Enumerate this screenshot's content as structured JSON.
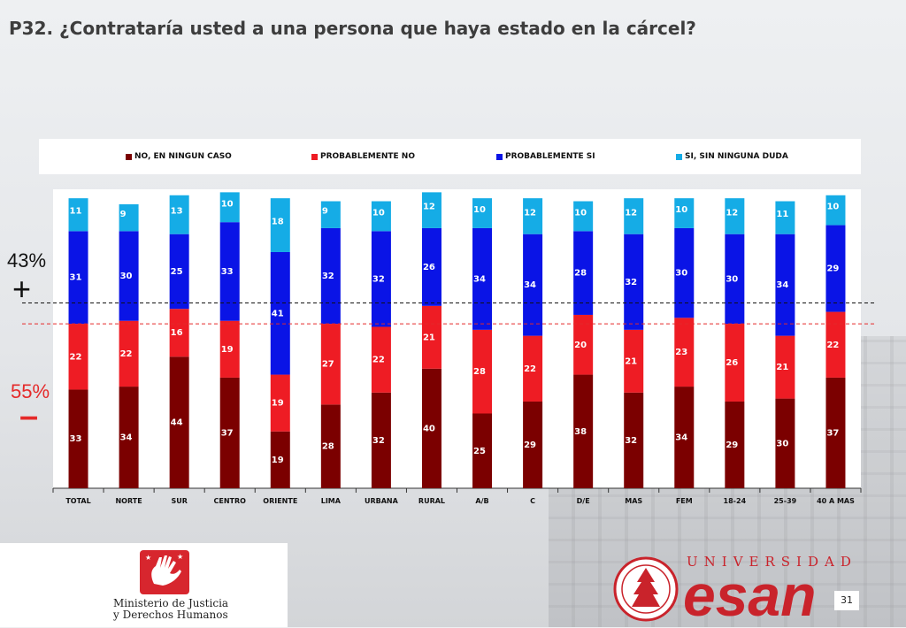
{
  "page": {
    "title": "P32. ¿Contrataría usted a una persona que haya estado en la cárcel?",
    "page_number": "31"
  },
  "side_labels": {
    "positive_pct": "43%",
    "positive_sign": "+",
    "negative_pct": "55%",
    "negative_sign": "–"
  },
  "logos": {
    "ministry_line1": "Ministerio de Justicia",
    "ministry_line2": "y Derechos Humanos",
    "university_word": "UNIVERSIDAD",
    "university_name": "esan"
  },
  "chart_data": {
    "type": "bar",
    "stacked": true,
    "title": "",
    "xlabel": "",
    "ylabel": "",
    "legend_position": "top",
    "categories": [
      "TOTAL",
      "NORTE",
      "SUR",
      "CENTRO",
      "ORIENTE",
      "LIMA",
      "URBANA",
      "RURAL",
      "A/B",
      "C",
      "D/E",
      "MAS",
      "FEM",
      "18-24",
      "25-39",
      "40 A MAS"
    ],
    "series": [
      {
        "name": "NO, EN NINGUN CASO",
        "color": "#7b0000",
        "values": [
          33,
          34,
          44,
          37,
          19,
          28,
          32,
          40,
          25,
          29,
          38,
          32,
          34,
          29,
          30,
          37
        ]
      },
      {
        "name": "PROBABLEMENTE NO",
        "color": "#ee1c24",
        "values": [
          22,
          22,
          16,
          19,
          19,
          27,
          22,
          21,
          28,
          22,
          20,
          21,
          23,
          26,
          21,
          22
        ]
      },
      {
        "name": "PROBABLEMENTE SI",
        "color": "#0a14e6",
        "values": [
          31,
          30,
          25,
          33,
          41,
          32,
          32,
          26,
          34,
          34,
          28,
          32,
          30,
          30,
          34,
          29
        ]
      },
      {
        "name": "SI, SIN NINGUNA DUDA",
        "color": "#15ace6",
        "values": [
          11,
          9,
          13,
          10,
          18,
          9,
          10,
          12,
          10,
          12,
          10,
          12,
          10,
          12,
          11,
          10
        ]
      }
    ],
    "ylim": [
      0,
      100
    ],
    "reference_lines": [
      {
        "value": 55,
        "color": "#e52a2a",
        "style": "dashed"
      },
      {
        "value": 62,
        "color": "#111111",
        "style": "dashed"
      }
    ]
  }
}
